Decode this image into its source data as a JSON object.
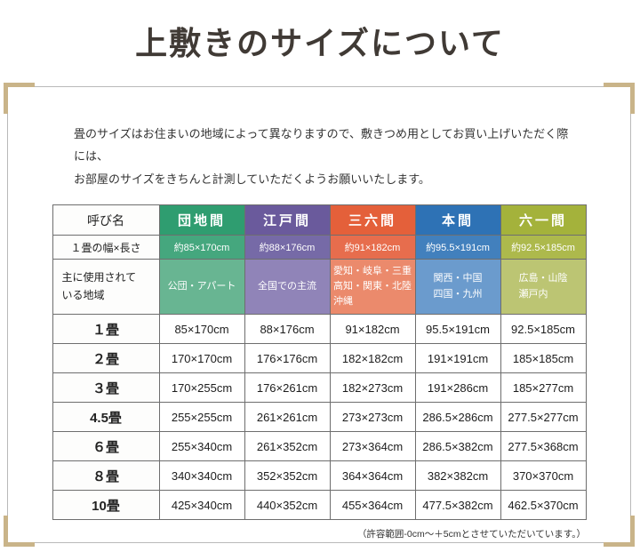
{
  "page": {
    "title": "上敷きのサイズについて",
    "intro": {
      "line1": "畳のサイズはお住まいの地域によって異なりますので、敷きつめ用としてお買い上げいただく際には、",
      "line2": "お部屋のサイズをきちんと計測していただくようお願いいたします。"
    },
    "footnote": "（許容範囲-0cm〜＋5cmとさせていただいています。）"
  },
  "table": {
    "corner_label": "呼び名",
    "size_row_label": "１畳の幅×長さ",
    "region_row_label_line1": "主に使用されて",
    "region_row_label_line2": "いる地域",
    "row_labels": [
      "１畳",
      "２畳",
      "３畳",
      "4.5畳",
      "６畳",
      "８畳",
      "10畳"
    ],
    "columns": [
      {
        "name": "団地間",
        "header_color": "#2f9d70",
        "size_color": "#45a77e",
        "region_color": "#68b592",
        "size": "約85×170cm",
        "regions": [
          "公団・アパート"
        ],
        "values": [
          "85×170cm",
          "170×170cm",
          "170×255cm",
          "255×255cm",
          "255×340cm",
          "340×340cm",
          "425×340cm"
        ]
      },
      {
        "name": "江戸間",
        "header_color": "#6a5a9c",
        "size_color": "#766aa7",
        "region_color": "#9084b8",
        "size": "約88×176cm",
        "regions": [
          "全国での主流"
        ],
        "values": [
          "88×176cm",
          "176×176cm",
          "176×261cm",
          "261×261cm",
          "261×352cm",
          "352×352cm",
          "440×352cm"
        ]
      },
      {
        "name": "三六間",
        "header_color": "#e4603a",
        "size_color": "#e76d4d",
        "region_color": "#eb8a6c",
        "size": "約91×182cm",
        "regions": [
          "愛知・岐阜・三重",
          "高知・関東・北陸",
          "沖縄"
        ],
        "values": [
          "91×182cm",
          "182×182cm",
          "182×273cm",
          "273×273cm",
          "273×364cm",
          "364×364cm",
          "455×364cm"
        ]
      },
      {
        "name": "本間",
        "header_color": "#2e72b5",
        "size_color": "#4280bd",
        "region_color": "#6b9bcd",
        "size": "約95.5×191cm",
        "regions": [
          "関西・中国",
          "四国・九州"
        ],
        "values": [
          "95.5×191cm",
          "191×191cm",
          "191×286cm",
          "286.5×286cm",
          "286.5×382cm",
          "382×382cm",
          "477.5×382cm"
        ]
      },
      {
        "name": "六一間",
        "header_color": "#a4b23b",
        "size_color": "#adb94c",
        "region_color": "#bcc573",
        "size": "約92.5×185cm",
        "regions": [
          "広島・山陰",
          "瀬戸内"
        ],
        "values": [
          "92.5×185cm",
          "185×185cm",
          "185×277cm",
          "277.5×277cm",
          "277.5×368cm",
          "370×370cm",
          "462.5×370cm"
        ]
      }
    ]
  }
}
